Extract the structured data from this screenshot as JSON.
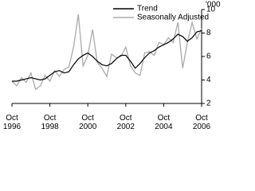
{
  "chart_data": {
    "type": "line",
    "y_unit": "'000",
    "x": [
      1996.75,
      1997.0,
      1997.25,
      1997.5,
      1997.75,
      1998.0,
      1998.25,
      1998.5,
      1998.75,
      1999.0,
      1999.25,
      1999.5,
      1999.75,
      2000.0,
      2000.25,
      2000.5,
      2000.75,
      2001.0,
      2001.25,
      2001.5,
      2001.75,
      2002.0,
      2002.25,
      2002.5,
      2002.75,
      2003.0,
      2003.25,
      2003.5,
      2003.75,
      2004.0,
      2004.25,
      2004.5,
      2004.75,
      2005.0,
      2005.25,
      2005.5,
      2005.75,
      2006.0,
      2006.25,
      2006.5,
      2006.75
    ],
    "series": [
      {
        "name": "Trend",
        "color": "#000000",
        "values": [
          3.9,
          3.9,
          4.0,
          4.1,
          4.2,
          4.1,
          4.0,
          4.1,
          4.4,
          4.7,
          4.8,
          4.6,
          4.7,
          5.3,
          5.8,
          6.1,
          6.3,
          6.0,
          5.6,
          5.3,
          5.2,
          5.4,
          5.8,
          6.1,
          6.1,
          5.6,
          5.0,
          5.4,
          5.9,
          6.3,
          6.5,
          6.8,
          7.0,
          7.2,
          7.5,
          7.9,
          7.7,
          7.3,
          7.6,
          8.1,
          8.2
        ]
      },
      {
        "name": "Seasonally Adjusted",
        "color": "#aaaaaa",
        "values": [
          3.9,
          3.5,
          4.2,
          3.8,
          4.6,
          3.2,
          3.5,
          4.4,
          3.9,
          4.8,
          4.3,
          4.9,
          5.1,
          6.8,
          9.6,
          5.2,
          6.1,
          8.3,
          5.5,
          5.0,
          4.3,
          6.2,
          5.9,
          6.0,
          6.8,
          5.2,
          4.6,
          4.4,
          6.3,
          6.4,
          6.1,
          7.2,
          7.0,
          7.6,
          7.2,
          8.9,
          5.0,
          7.2,
          8.9,
          7.5,
          8.4
        ]
      }
    ],
    "xlim": [
      1996.75,
      2006.75
    ],
    "xticks": [
      {
        "value": 1996.75,
        "label": "Oct 1996"
      },
      {
        "value": 1998.75,
        "label": "Oct 1998"
      },
      {
        "value": 2000.75,
        "label": "Oct 2000"
      },
      {
        "value": 2002.75,
        "label": "Oct 2002"
      },
      {
        "value": 2004.75,
        "label": "Oct 2004"
      },
      {
        "value": 2006.75,
        "label": "Oct 2006"
      }
    ],
    "ylim": [
      2,
      10
    ],
    "yticks": [
      2,
      4,
      6,
      8,
      10
    ],
    "legend": "top-right"
  }
}
